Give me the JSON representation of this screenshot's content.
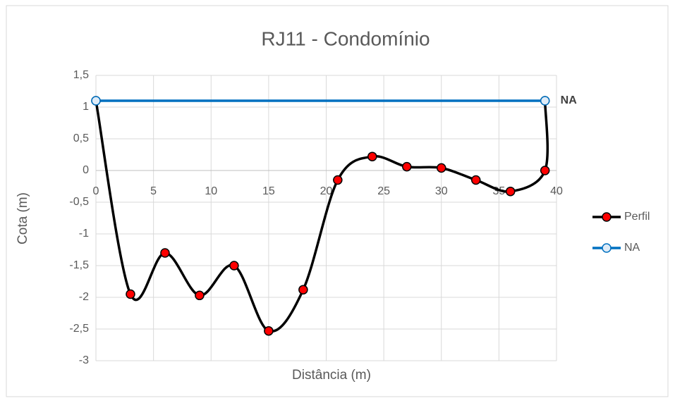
{
  "chart_data": {
    "type": "scatter",
    "title": "RJ11 - Condomínio",
    "xlabel": "Distância (m)",
    "ylabel": "Cota (m)",
    "xlim": [
      0,
      40
    ],
    "xticks": [
      0,
      5,
      10,
      15,
      20,
      25,
      30,
      35,
      40
    ],
    "ylim": [
      -3,
      1.5
    ],
    "yticks": [
      {
        "value": 1.5,
        "label": "1,5"
      },
      1,
      {
        "value": 0.5,
        "label": "0,5"
      },
      0,
      {
        "value": -0.5,
        "label": "-0,5"
      },
      -1,
      {
        "value": -1.5,
        "label": "-1,5"
      },
      -2,
      {
        "value": -2.5,
        "label": "-2,5"
      },
      -3
    ],
    "grid": true,
    "legend": "right",
    "annotation": "NA",
    "series": [
      {
        "name": "Perfil",
        "color": "#000000",
        "marker_color": "#ff0000",
        "smooth": true,
        "x": [
          0,
          3,
          6,
          9,
          12,
          15,
          18,
          21,
          24,
          27,
          30,
          33,
          36,
          39,
          39
        ],
        "values": [
          1.1,
          -1.95,
          -1.3,
          -1.97,
          -1.5,
          -2.53,
          -1.88,
          -0.15,
          0.22,
          0.06,
          0.04,
          -0.15,
          -0.33,
          0,
          1.1
        ]
      },
      {
        "name": "NA",
        "color": "#0070c0",
        "marker_color": "#deebf7",
        "smooth": false,
        "x": [
          0,
          39
        ],
        "values": [
          1.1,
          1.1
        ]
      }
    ]
  }
}
